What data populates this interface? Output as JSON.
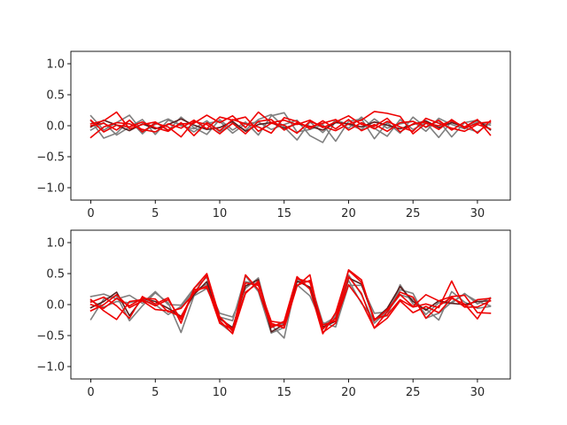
{
  "chart_data": [
    {
      "type": "line",
      "title": "",
      "xlabel": "",
      "ylabel": "",
      "xlim": [
        -1.55,
        32.55
      ],
      "ylim": [
        -1.2,
        1.2
      ],
      "xticks": [
        0,
        5,
        10,
        15,
        20,
        25,
        30
      ],
      "yticks": [
        -1.0,
        -0.5,
        0.0,
        0.5,
        1.0
      ],
      "xtick_labels": [
        "0",
        "5",
        "10",
        "15",
        "20",
        "25",
        "30"
      ],
      "ytick_labels": [
        "−1.0",
        "−0.5",
        "0.0",
        "0.5",
        "1.0"
      ],
      "grid": false,
      "x": [
        0,
        1,
        2,
        3,
        4,
        5,
        6,
        7,
        8,
        9,
        10,
        11,
        12,
        13,
        14,
        15,
        16,
        17,
        18,
        19,
        20,
        21,
        22,
        23,
        24,
        25,
        26,
        27,
        28,
        29,
        30,
        31
      ],
      "series": [
        {
          "color": "#7f7f7f",
          "values": [
            0.16,
            -0.07,
            0.05,
            0.17,
            -0.09,
            0.02,
            0.11,
            0.0,
            -0.05,
            0.08,
            -0.1,
            0.04,
            -0.07,
            0.1,
            0.18,
            -0.02,
            -0.23,
            0.06,
            -0.11,
            0.09,
            0.02,
            -0.06,
            0.11,
            -0.04,
            0.03,
            0.07,
            -0.09,
            0.12,
            0.02,
            -0.05,
            0.06,
            0.01
          ]
        },
        {
          "color": "#7f7f7f",
          "values": [
            0.08,
            -0.2,
            -0.12,
            0.09,
            -0.13,
            0.06,
            -0.08,
            0.14,
            -0.03,
            -0.14,
            0.1,
            -0.07,
            0.06,
            -0.15,
            0.16,
            0.21,
            -0.1,
            -0.06,
            0.02,
            -0.25,
            0.07,
            0.11,
            -0.21,
            0.05,
            -0.12,
            0.14,
            -0.03,
            0.08,
            -0.18,
            0.05,
            0.09,
            -0.07
          ]
        },
        {
          "color": "#7f7f7f",
          "values": [
            -0.07,
            0.05,
            -0.15,
            -0.02,
            0.1,
            -0.14,
            0.09,
            0.02,
            -0.1,
            0.04,
            0.07,
            -0.12,
            0.03,
            0.06,
            -0.06,
            0.02,
            0.09,
            -0.16,
            -0.27,
            0.08,
            -0.04,
            0.14,
            -0.04,
            -0.17,
            0.1,
            -0.06,
            0.05,
            -0.19,
            0.07,
            -0.03,
            -0.1,
            0.04
          ]
        },
        {
          "color": "#5a1f1f",
          "values": [
            -0.02,
            0.09,
            0.01,
            -0.08,
            0.03,
            -0.05,
            0.02,
            0.11,
            0.01,
            -0.06,
            -0.03,
            0.07,
            -0.09,
            0.02,
            0.05,
            -0.04,
            0.03,
            -0.01,
            -0.07,
            0.05,
            0.03,
            -0.02,
            0.06,
            0.01,
            -0.05,
            0.02,
            0.08,
            -0.03,
            0.05,
            -0.02,
            0.09,
            -0.06
          ]
        },
        {
          "color": "#ee0000",
          "values": [
            0.03,
            0.08,
            0.22,
            -0.05,
            0.02,
            0.06,
            -0.07,
            0.03,
            0.04,
            0.17,
            0.05,
            0.16,
            -0.03,
            0.22,
            0.05,
            0.09,
            0.02,
            0.09,
            -0.03,
            0.06,
            0.16,
            0.02,
            -0.01,
            0.12,
            -0.1,
            0.03,
            0.06,
            -0.06,
            0.1,
            -0.04,
            0.04,
            0.06
          ]
        },
        {
          "color": "#ee0000",
          "values": [
            -0.19,
            -0.02,
            0.05,
            0.03,
            -0.06,
            -0.1,
            0.03,
            -0.04,
            0.09,
            -0.05,
            0.14,
            0.09,
            0.14,
            -0.09,
            0.04,
            0.01,
            -0.12,
            0.07,
            -0.01,
            -0.08,
            0.03,
            0.09,
            0.23,
            0.2,
            0.15,
            -0.13,
            0.04,
            0.0,
            0.08,
            -0.02,
            0.1,
            -0.15
          ]
        },
        {
          "color": "#ee0000",
          "values": [
            0.09,
            -0.1,
            0.01,
            -0.02,
            0.06,
            -0.03,
            -0.09,
            0.05,
            -0.16,
            0.05,
            -0.08,
            0.1,
            0.03,
            -0.02,
            -0.12,
            0.13,
            0.07,
            -0.05,
            0.08,
            -0.05,
            0.1,
            -0.08,
            0.02,
            -0.09,
            0.05,
            0.07,
            -0.02,
            0.09,
            -0.07,
            0.06,
            -0.12,
            0.08
          ]
        },
        {
          "color": "#ee0000",
          "values": [
            0.0,
            0.04,
            -0.07,
            0.09,
            -0.1,
            0.04,
            -0.02,
            -0.18,
            0.07,
            0.02,
            -0.13,
            0.04,
            -0.13,
            0.07,
            0.1,
            -0.07,
            0.05,
            -0.02,
            0.04,
            0.1,
            -0.07,
            0.05,
            -0.05,
            0.07,
            -0.02,
            -0.09,
            0.12,
            0.04,
            -0.04,
            -0.09,
            0.02,
            -0.05
          ]
        }
      ]
    },
    {
      "type": "line",
      "title": "",
      "xlabel": "",
      "ylabel": "",
      "xlim": [
        -1.55,
        32.55
      ],
      "ylim": [
        -1.2,
        1.2
      ],
      "xticks": [
        0,
        5,
        10,
        15,
        20,
        25,
        30
      ],
      "yticks": [
        -1.0,
        -0.5,
        0.0,
        0.5,
        1.0
      ],
      "xtick_labels": [
        "0",
        "5",
        "10",
        "15",
        "20",
        "25",
        "30"
      ],
      "ytick_labels": [
        "−1.0",
        "−0.5",
        "0.0",
        "0.5",
        "1.0"
      ],
      "grid": false,
      "x": [
        0,
        1,
        2,
        3,
        4,
        5,
        6,
        7,
        8,
        9,
        10,
        11,
        12,
        13,
        14,
        15,
        16,
        17,
        18,
        19,
        20,
        21,
        22,
        23,
        24,
        25,
        26,
        27,
        28,
        29,
        30,
        31
      ],
      "series": [
        {
          "color": "#7f7f7f",
          "values": [
            0.13,
            0.17,
            0.09,
            0.15,
            0.02,
            0.21,
            0.0,
            -0.01,
            0.26,
            0.44,
            -0.3,
            -0.46,
            0.37,
            0.33,
            -0.33,
            -0.54,
            0.42,
            0.25,
            -0.4,
            -0.16,
            0.48,
            0.16,
            -0.3,
            -0.1,
            0.24,
            0.18,
            -0.22,
            -0.14,
            0.04,
            0.17,
            0.05,
            -0.02
          ]
        },
        {
          "color": "#7f7f7f",
          "values": [
            -0.24,
            0.09,
            0.14,
            -0.26,
            -0.02,
            0.19,
            0.03,
            -0.45,
            0.14,
            0.26,
            -0.2,
            -0.26,
            0.46,
            0.21,
            -0.46,
            -0.37,
            0.32,
            0.14,
            -0.32,
            -0.2,
            0.39,
            0.02,
            -0.24,
            -0.18,
            0.32,
            0.01,
            -0.07,
            -0.25,
            0.21,
            0.04,
            -0.06,
            -0.03
          ]
        },
        {
          "color": "#7f7f7f",
          "values": [
            0.06,
            -0.04,
            0.05,
            0.03,
            0.08,
            0.0,
            -0.16,
            -0.03,
            0.22,
            0.33,
            -0.14,
            -0.2,
            0.26,
            0.43,
            -0.36,
            -0.3,
            0.36,
            0.38,
            -0.29,
            -0.36,
            0.31,
            0.31,
            -0.14,
            -0.12,
            0.16,
            0.09,
            -0.16,
            0.03,
            0.02,
            0.18,
            0.01,
            0.11
          ]
        },
        {
          "color": "#5a1f1f",
          "values": [
            -0.05,
            0.05,
            0.2,
            -0.18,
            0.1,
            0.05,
            -0.06,
            -0.19,
            0.16,
            0.37,
            -0.23,
            -0.37,
            0.3,
            0.4,
            -0.44,
            -0.32,
            0.38,
            0.28,
            -0.36,
            -0.27,
            0.43,
            0.33,
            -0.25,
            -0.06,
            0.29,
            0.05,
            -0.09,
            0.06,
            0.02,
            0.0,
            0.05,
            0.06
          ]
        },
        {
          "color": "#ee0000",
          "values": [
            0.04,
            0.12,
            -0.02,
            -0.22,
            0.13,
            0.01,
            0.11,
            -0.3,
            0.26,
            0.5,
            -0.2,
            -0.43,
            0.48,
            0.24,
            -0.37,
            -0.27,
            0.45,
            0.25,
            -0.47,
            -0.13,
            0.55,
            0.36,
            -0.23,
            -0.17,
            0.08,
            -0.04,
            0.01,
            -0.05,
            0.38,
            -0.04,
            -0.04,
            0.06
          ]
        },
        {
          "color": "#ee0000",
          "values": [
            -0.1,
            0.0,
            0.16,
            -0.05,
            0.06,
            -0.08,
            -0.1,
            -0.2,
            0.2,
            0.3,
            -0.3,
            -0.4,
            0.2,
            0.35,
            -0.3,
            -0.38,
            0.3,
            0.48,
            -0.45,
            -0.3,
            0.45,
            0.18,
            -0.38,
            -0.12,
            0.2,
            0.12,
            -0.22,
            -0.02,
            0.12,
            -0.04,
            0.08,
            0.1
          ]
        },
        {
          "color": "#ee0000",
          "values": [
            0.0,
            -0.06,
            0.1,
            -0.02,
            0.1,
            0.09,
            -0.12,
            -0.06,
            0.18,
            0.47,
            -0.26,
            -0.47,
            0.18,
            0.38,
            -0.33,
            -0.34,
            0.31,
            0.39,
            -0.39,
            -0.22,
            0.56,
            0.4,
            -0.26,
            -0.08,
            0.16,
            -0.03,
            0.16,
            0.06,
            0.13,
            0.15,
            -0.13,
            -0.14
          ]
        },
        {
          "color": "#ee0000",
          "values": [
            0.08,
            -0.1,
            -0.24,
            0.05,
            0.08,
            -0.02,
            0.08,
            -0.24,
            0.24,
            0.27,
            -0.2,
            -0.4,
            0.35,
            0.31,
            -0.27,
            -0.3,
            0.42,
            0.36,
            -0.33,
            -0.26,
            0.32,
            0.04,
            -0.38,
            -0.22,
            0.06,
            -0.13,
            -0.03,
            -0.13,
            0.1,
            0.01,
            -0.23,
            0.1
          ]
        }
      ]
    }
  ]
}
